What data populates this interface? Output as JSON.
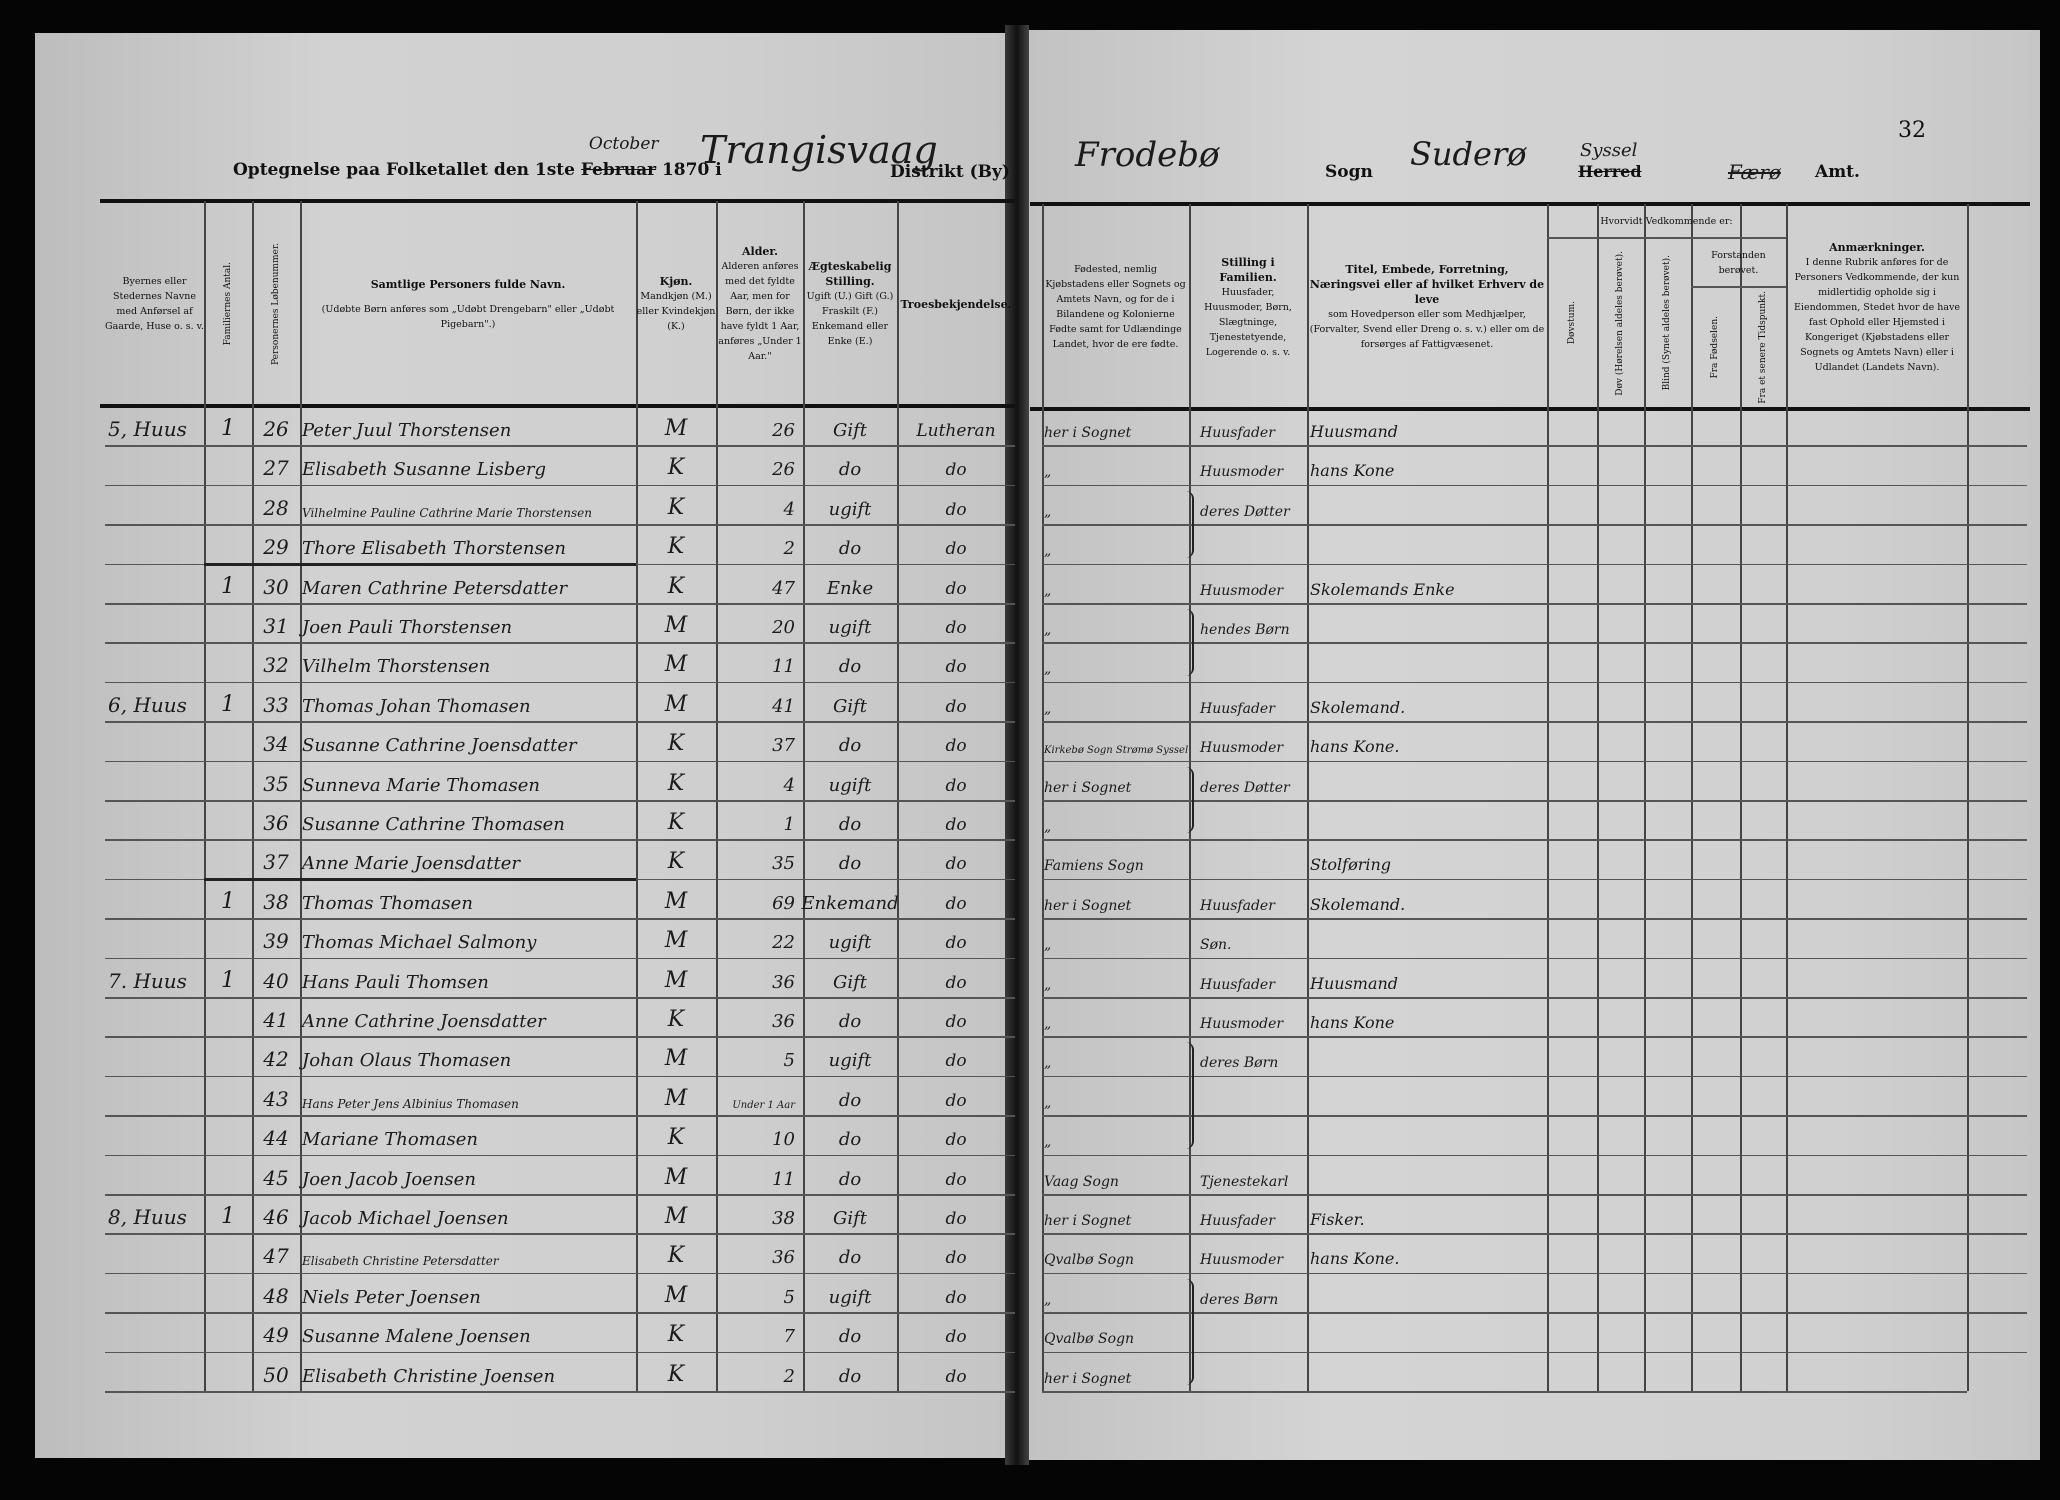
{
  "left_title": {
    "prefix": "Optegnelse paa Folketallet den 1ste",
    "month_struck": "Februar",
    "month_written": "October",
    "year_in": "1870 i",
    "district_written": "Trangisvaag",
    "district_label": "Distrikt (By)"
  },
  "right_title": {
    "place_written": "Frodebø",
    "sogn_label": "Sogn",
    "sogn_written": "Suderø",
    "herred_struck": "Herred",
    "herred_written": "Syssel",
    "amt_written": "Færø",
    "amt_label": "Amt.",
    "page_number": "32"
  },
  "headers": {
    "place": "Byernes eller Stedernes Navne med Anførsel af Gaarde, Huse o. s. v.",
    "families": "Familiernes Antal.",
    "person_no": "Personernes Løbenummer.",
    "name_title": "Samtlige Personers fulde Navn.",
    "name_note": "(Udøbte Børn anføres som „Udøbt Drengebarn\" eller „Udøbt Pigebarn\".)",
    "sex_title": "Kjøn.",
    "sex_note": "Mandkjøn (M.) eller Kvindekjøn (K.)",
    "age_title": "Alder.",
    "age_note": "Alderen anføres med det fyldte Aar, men for Børn, der ikke have fyldt 1 Aar, anføres „Under 1 Aar.\"",
    "marital_title": "Ægteskabelig Stilling.",
    "marital_note": "Ugift (U.) Gift (G.) Fraskilt (F.) Enkemand eller Enke (E.)",
    "religion": "Troesbekjendelse.",
    "birthplace": "Fødested, nemlig Kjøbstadens eller Sognets og Amtets Navn, og for de i Bilandene og Kolonierne Fødte samt for Udlændinge Landet, hvor de ere fødte.",
    "position_title": "Stilling i Familien.",
    "position_note": "Huusfader, Huusmoder, Børn, Slægtninge, Tjenestetyende, Logerende o. s. v.",
    "occupation_title": "Titel, Embede, Forretning, Næringsvei eller af hvilket Erhverv de leve",
    "occupation_note": "som Hovedperson eller som Medhjælper, (Forvalter, Svend eller Dreng o. s. v.) eller om de forsørges af Fattigvæsenet.",
    "whether": "Hvorvidt Vedkommende er:",
    "deafmute": "Døvstum.",
    "deaf": "Døv (Hørelsen aldeles berøvet).",
    "blind": "Blind (Synet aldeles berøvet).",
    "insane": "Forstanden berøvet.",
    "from_birth": "Fra Fødselen.",
    "later": "Fra et senere Tidspunkt.",
    "remarks_title": "Anmærkninger.",
    "remarks_note": "I denne Rubrik anføres for de Personers Vedkommende, der kun midlertidig opholde sig i Eiendommen, Stedet hvor de have fast Ophold eller Hjemsted i Kongeriget (Kjøbstadens eller Sognets og Amtets Navn) eller i Udlandet (Landets Navn)."
  },
  "rows": [
    {
      "place": "5, Huus",
      "fam": "1",
      "no": "26",
      "name": "Peter Juul Thorstensen",
      "sex": "M",
      "age": "26",
      "marital": "Gift",
      "religion": "Lutheran",
      "birthplace": "her i Sognet",
      "position": "Huusfader",
      "occupation": "Huusmand"
    },
    {
      "place": "",
      "fam": "",
      "no": "27",
      "name": "Elisabeth Susanne Lisberg",
      "sex": "K",
      "age": "26",
      "marital": "do",
      "religion": "do",
      "birthplace": "„",
      "position": "Huusmoder",
      "occupation": "hans Kone"
    },
    {
      "place": "",
      "fam": "",
      "no": "28",
      "name": "Vilhelmine Pauline Cathrine Marie Thorstensen",
      "sex": "K",
      "age": "4",
      "marital": "ugift",
      "religion": "do",
      "birthplace": "„",
      "position": "deres Døtter",
      "occupation": ""
    },
    {
      "place": "",
      "fam": "",
      "no": "29",
      "name": "Thore Elisabeth Thorstensen",
      "sex": "K",
      "age": "2",
      "marital": "do",
      "religion": "do",
      "birthplace": "„",
      "position": "",
      "occupation": ""
    },
    {
      "place": "",
      "fam": "1",
      "no": "30",
      "name": "Maren Cathrine Petersdatter",
      "sex": "K",
      "age": "47",
      "marital": "Enke",
      "religion": "do",
      "birthplace": "„",
      "position": "Huusmoder",
      "occupation": "Skolemands Enke"
    },
    {
      "place": "",
      "fam": "",
      "no": "31",
      "name": "Joen Pauli Thorstensen",
      "sex": "M",
      "age": "20",
      "marital": "ugift",
      "religion": "do",
      "birthplace": "„",
      "position": "hendes Børn",
      "occupation": ""
    },
    {
      "place": "",
      "fam": "",
      "no": "32",
      "name": "Vilhelm Thorstensen",
      "sex": "M",
      "age": "11",
      "marital": "do",
      "religion": "do",
      "birthplace": "„",
      "position": "",
      "occupation": ""
    },
    {
      "place": "6, Huus",
      "fam": "1",
      "no": "33",
      "name": "Thomas Johan Thomasen",
      "sex": "M",
      "age": "41",
      "marital": "Gift",
      "religion": "do",
      "birthplace": "„",
      "position": "Huusfader",
      "occupation": "Skolemand."
    },
    {
      "place": "",
      "fam": "",
      "no": "34",
      "name": "Susanne Cathrine Joensdatter",
      "sex": "K",
      "age": "37",
      "marital": "do",
      "religion": "do",
      "birthplace": "Kirkebø Sogn Strømø Syssel",
      "position": "Huusmoder",
      "occupation": "hans Kone."
    },
    {
      "place": "",
      "fam": "",
      "no": "35",
      "name": "Sunneva Marie Thomasen",
      "sex": "K",
      "age": "4",
      "marital": "ugift",
      "religion": "do",
      "birthplace": "her i Sognet",
      "position": "deres Døtter",
      "occupation": ""
    },
    {
      "place": "",
      "fam": "",
      "no": "36",
      "name": "Susanne Cathrine Thomasen",
      "sex": "K",
      "age": "1",
      "marital": "do",
      "religion": "do",
      "birthplace": "„",
      "position": "",
      "occupation": ""
    },
    {
      "place": "",
      "fam": "",
      "no": "37",
      "name": "Anne Marie Joensdatter",
      "sex": "K",
      "age": "35",
      "marital": "do",
      "religion": "do",
      "birthplace": "Famiens Sogn",
      "position": "",
      "occupation": "Stolføring"
    },
    {
      "place": "",
      "fam": "1",
      "no": "38",
      "name": "Thomas Thomasen",
      "sex": "M",
      "age": "69",
      "marital": "Enkemand",
      "religion": "do",
      "birthplace": "her i Sognet",
      "position": "Huusfader",
      "occupation": "Skolemand."
    },
    {
      "place": "",
      "fam": "",
      "no": "39",
      "name": "Thomas Michael Salmony",
      "sex": "M",
      "age": "22",
      "marital": "ugift",
      "religion": "do",
      "birthplace": "„",
      "position": "Søn.",
      "occupation": ""
    },
    {
      "place": "7. Huus",
      "fam": "1",
      "no": "40",
      "name": "Hans Pauli Thomsen",
      "sex": "M",
      "age": "36",
      "marital": "Gift",
      "religion": "do",
      "birthplace": "„",
      "position": "Huusfader",
      "occupation": "Huusmand"
    },
    {
      "place": "",
      "fam": "",
      "no": "41",
      "name": "Anne Cathrine Joensdatter",
      "sex": "K",
      "age": "36",
      "marital": "do",
      "religion": "do",
      "birthplace": "„",
      "position": "Huusmoder",
      "occupation": "hans Kone"
    },
    {
      "place": "",
      "fam": "",
      "no": "42",
      "name": "Johan Olaus Thomasen",
      "sex": "M",
      "age": "5",
      "marital": "ugift",
      "religion": "do",
      "birthplace": "„",
      "position": "deres Børn",
      "occupation": ""
    },
    {
      "place": "",
      "fam": "",
      "no": "43",
      "name": "Hans Peter Jens Albinius Thomasen",
      "sex": "M",
      "age": "Under 1 Aar",
      "marital": "do",
      "religion": "do",
      "birthplace": "„",
      "position": "",
      "occupation": ""
    },
    {
      "place": "",
      "fam": "",
      "no": "44",
      "name": "Mariane Thomasen",
      "sex": "K",
      "age": "10",
      "marital": "do",
      "religion": "do",
      "birthplace": "„",
      "position": "",
      "occupation": ""
    },
    {
      "place": "",
      "fam": "",
      "no": "45",
      "name": "Joen Jacob Joensen",
      "sex": "M",
      "age": "11",
      "marital": "do",
      "religion": "do",
      "birthplace": "Vaag Sogn",
      "position": "Tjenestekarl",
      "occupation": ""
    },
    {
      "place": "8, Huus",
      "fam": "1",
      "no": "46",
      "name": "Jacob Michael Joensen",
      "sex": "M",
      "age": "38",
      "marital": "Gift",
      "religion": "do",
      "birthplace": "her i Sognet",
      "position": "Huusfader",
      "occupation": "Fisker."
    },
    {
      "place": "",
      "fam": "",
      "no": "47",
      "name": "Elisabeth Christine Petersdatter",
      "sex": "K",
      "age": "36",
      "marital": "do",
      "religion": "do",
      "birthplace": "Qvalbø Sogn",
      "position": "Huusmoder",
      "occupation": "hans Kone."
    },
    {
      "place": "",
      "fam": "",
      "no": "48",
      "name": "Niels Peter Joensen",
      "sex": "M",
      "age": "5",
      "marital": "ugift",
      "religion": "do",
      "birthplace": "„",
      "position": "deres Børn",
      "occupation": ""
    },
    {
      "place": "",
      "fam": "",
      "no": "49",
      "name": "Susanne Malene Joensen",
      "sex": "K",
      "age": "7",
      "marital": "do",
      "religion": "do",
      "birthplace": "Qvalbø Sogn",
      "position": "",
      "occupation": ""
    },
    {
      "place": "",
      "fam": "",
      "no": "50",
      "name": "Elisabeth Christine Joensen",
      "sex": "K",
      "age": "2",
      "marital": "do",
      "religion": "do",
      "birthplace": "her i Sognet",
      "position": "",
      "occupation": ""
    }
  ]
}
